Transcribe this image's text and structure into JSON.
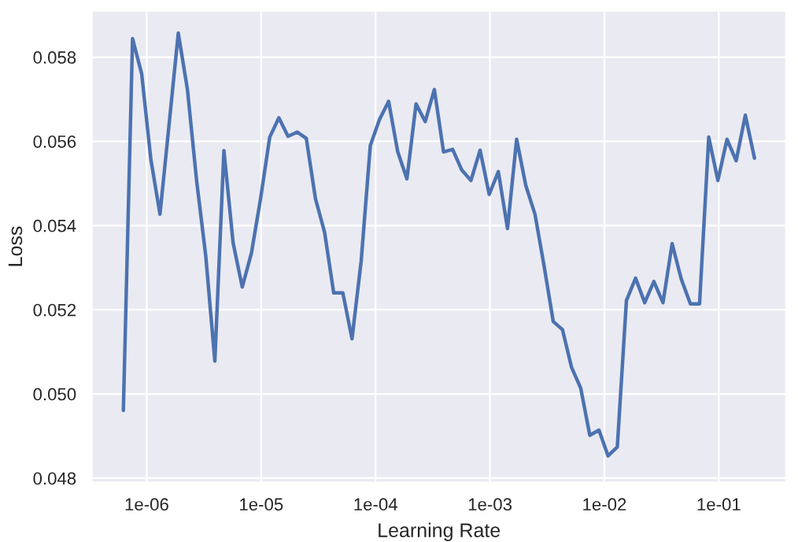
{
  "chart_data": {
    "type": "line",
    "xlabel": "Learning Rate",
    "ylabel": "Loss",
    "log": "x",
    "grid": true,
    "marker": "none",
    "line_style": "solid",
    "xlim": [
      3.31e-07,
      0.387
    ],
    "ylim": [
      0.0479,
      0.0591
    ],
    "xticks": [
      {
        "value": 1e-06,
        "label": "1e-06"
      },
      {
        "value": 1e-05,
        "label": "1e-05"
      },
      {
        "value": 0.0001,
        "label": "1e-04"
      },
      {
        "value": 0.001,
        "label": "1e-03"
      },
      {
        "value": 0.01,
        "label": "1e-02"
      },
      {
        "value": 0.1,
        "label": "1e-01"
      }
    ],
    "yticks": [
      {
        "value": 0.048,
        "label": "0.048"
      },
      {
        "value": 0.05,
        "label": "0.050"
      },
      {
        "value": 0.052,
        "label": "0.052"
      },
      {
        "value": 0.054,
        "label": "0.054"
      },
      {
        "value": 0.056,
        "label": "0.056"
      },
      {
        "value": 0.058,
        "label": "0.058"
      }
    ],
    "x": [
      6.25e-07,
      7.52e-07,
      9.04e-07,
      1.087e-06,
      1.306e-06,
      1.57e-06,
      1.888e-06,
      2.27e-06,
      2.729e-06,
      3.281e-06,
      3.94e-06,
      4.73e-06,
      5.69e-06,
      6.84e-06,
      8.23e-06,
      9.89e-06,
      1.189e-05,
      1.429e-05,
      1.718e-05,
      2.065e-05,
      2.482e-05,
      2.984e-05,
      3.587e-05,
      4.31e-05,
      5.18e-05,
      6.23e-05,
      7.49e-05,
      9e-05,
      0.0001082,
      0.0001301,
      0.0001564,
      0.000188,
      0.000226,
      0.0002716,
      0.0003266,
      0.000393,
      0.000472,
      0.000567,
      0.000682,
      0.00082,
      0.000985,
      0.001184,
      0.001424,
      0.001711,
      0.002057,
      0.002474,
      0.002973,
      0.003574,
      0.0043,
      0.00517,
      0.00621,
      0.00746,
      0.00897,
      0.01078,
      0.01297,
      0.01559,
      0.01874,
      0.02252,
      0.02707,
      0.03254,
      0.0391,
      0.047,
      0.0565,
      0.0679,
      0.0817,
      0.0982,
      0.118,
      0.1419,
      0.1706,
      0.2051
    ],
    "series": [
      {
        "color": "#4c72b0",
        "values": [
          0.04961,
          0.05844,
          0.0576,
          0.05557,
          0.05427,
          0.05641,
          0.05857,
          0.05723,
          0.05507,
          0.05328,
          0.05078,
          0.05578,
          0.05359,
          0.05254,
          0.05335,
          0.05464,
          0.0561,
          0.05656,
          0.05612,
          0.05622,
          0.05607,
          0.05464,
          0.05384,
          0.0524,
          0.0524,
          0.05131,
          0.05316,
          0.0559,
          0.05652,
          0.05695,
          0.05575,
          0.05511,
          0.05689,
          0.05647,
          0.05723,
          0.05575,
          0.05581,
          0.05532,
          0.05507,
          0.05579,
          0.05474,
          0.05528,
          0.05393,
          0.05605,
          0.05495,
          0.05427,
          0.05304,
          0.05172,
          0.05153,
          0.05063,
          0.05014,
          0.04902,
          0.04914,
          0.04853,
          0.04874,
          0.05222,
          0.05275,
          0.05217,
          0.05267,
          0.05217,
          0.05357,
          0.05273,
          0.05214,
          0.05214,
          0.0561,
          0.05507,
          0.05605,
          0.05554,
          0.05662,
          0.0556
        ]
      }
    ]
  }
}
